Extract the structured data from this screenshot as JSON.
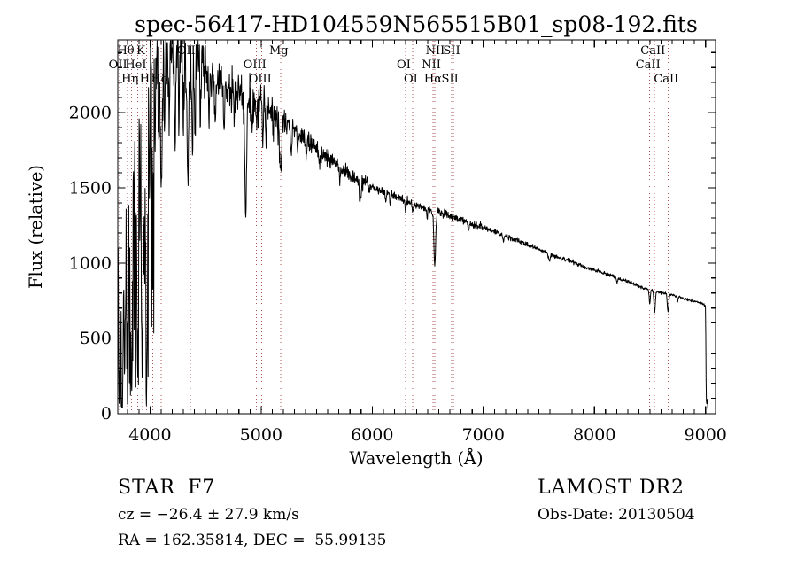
{
  "title": "spec-56417-HD104559N565515B01_sp08-192.fits",
  "footer": {
    "class_label": "STAR",
    "subclass": "F7",
    "cz_line": "cz = −26.4 ± 27.9 km/s",
    "radec_line": "RA = 162.35814, DEC =  55.99135",
    "survey": "LAMOST DR2",
    "obsdate_line": "Obs-Date: 20130504"
  },
  "chart_data": {
    "type": "line",
    "title": "spec-56417-HD104559N565515B01_sp08-192.fits",
    "xlabel": "Wavelength (Å)",
    "ylabel": "Flux (relative)",
    "xlim": [
      3710,
      9090
    ],
    "ylim": [
      0,
      2484
    ],
    "xticks_major": [
      4000,
      5000,
      6000,
      7000,
      8000,
      9000
    ],
    "xtick_minor_step": 100,
    "yticks_major": [
      0,
      500,
      1000,
      1500,
      2000
    ],
    "ytick_minor_step": 100,
    "grid": false,
    "line_color": "#000000",
    "marker_line_color": "#a85454",
    "marker_label_color": "#402020",
    "line_markers": [
      {
        "label": "Hθ",
        "wl": 3798,
        "row": 1
      },
      {
        "label": "K",
        "wl": 3933,
        "row": 1
      },
      {
        "label": "OIII",
        "wl": 4363,
        "row": 1
      },
      {
        "label": "Mg",
        "wl": 5175,
        "row": 1
      },
      {
        "label": "NII",
        "wl": 6583,
        "row": 1
      },
      {
        "label": "SII",
        "wl": 6731,
        "row": 1
      },
      {
        "label": "CaII",
        "wl": 8542,
        "row": 1
      },
      {
        "label": "OII",
        "wl": 3727,
        "row": 2
      },
      {
        "label": "HeI",
        "wl": 3889,
        "row": 2
      },
      {
        "label": "OIII",
        "wl": 4959,
        "row": 2
      },
      {
        "label": "OI",
        "wl": 6300,
        "row": 2
      },
      {
        "label": "NII",
        "wl": 6548,
        "row": 2
      },
      {
        "label": "CaII",
        "wl": 8498,
        "row": 2
      },
      {
        "label": "Hη",
        "wl": 3835,
        "row": 3
      },
      {
        "label": "H",
        "wl": 3968,
        "row": 3
      },
      {
        "label": "Hδ",
        "wl": 4101,
        "row": 3
      },
      {
        "label": "OIII",
        "wl": 5007,
        "row": 3
      },
      {
        "label": "OI",
        "wl": 6363,
        "row": 3
      },
      {
        "label": "Hα",
        "wl": 6563,
        "row": 3
      },
      {
        "label": "SII",
        "wl": 6716,
        "row": 3
      },
      {
        "label": "CaII",
        "wl": 8662,
        "row": 3
      }
    ],
    "unlabeled_markers": [
      4026
    ],
    "continuum": [
      [
        3710,
        1500
      ],
      [
        3716,
        2000
      ],
      [
        3725,
        2120
      ],
      [
        3750,
        2150
      ],
      [
        3800,
        2180
      ],
      [
        3850,
        2230
      ],
      [
        3900,
        2270
      ],
      [
        3950,
        2300
      ],
      [
        4000,
        2330
      ],
      [
        4060,
        2390
      ],
      [
        4120,
        2410
      ],
      [
        4180,
        2400
      ],
      [
        4240,
        2405
      ],
      [
        4300,
        2370
      ],
      [
        4360,
        2340
      ],
      [
        4420,
        2330
      ],
      [
        4480,
        2270
      ],
      [
        4540,
        2230
      ],
      [
        4600,
        2200
      ],
      [
        4660,
        2170
      ],
      [
        4720,
        2150
      ],
      [
        4780,
        2135
      ],
      [
        4861,
        2110
      ],
      [
        4940,
        2075
      ],
      [
        5000,
        2050
      ],
      [
        5080,
        2020
      ],
      [
        5175,
        1965
      ],
      [
        5250,
        1915
      ],
      [
        5320,
        1875
      ],
      [
        5400,
        1820
      ],
      [
        5500,
        1755
      ],
      [
        5600,
        1695
      ],
      [
        5700,
        1640
      ],
      [
        5800,
        1590
      ],
      [
        5900,
        1540
      ],
      [
        6000,
        1505
      ],
      [
        6100,
        1470
      ],
      [
        6200,
        1445
      ],
      [
        6300,
        1415
      ],
      [
        6400,
        1385
      ],
      [
        6500,
        1360
      ],
      [
        6563,
        1345
      ],
      [
        6650,
        1325
      ],
      [
        6750,
        1300
      ],
      [
        6850,
        1275
      ],
      [
        6950,
        1245
      ],
      [
        7050,
        1220
      ],
      [
        7150,
        1195
      ],
      [
        7250,
        1165
      ],
      [
        7350,
        1135
      ],
      [
        7450,
        1105
      ],
      [
        7550,
        1075
      ],
      [
        7650,
        1045
      ],
      [
        7750,
        1020
      ],
      [
        7850,
        990
      ],
      [
        7950,
        965
      ],
      [
        8050,
        940
      ],
      [
        8150,
        915
      ],
      [
        8250,
        890
      ],
      [
        8350,
        860
      ],
      [
        8450,
        830
      ],
      [
        8550,
        810
      ],
      [
        8650,
        795
      ],
      [
        8750,
        775
      ],
      [
        8850,
        755
      ],
      [
        8950,
        735
      ],
      [
        9000,
        715
      ],
      [
        9003,
        450
      ],
      [
        9006,
        90
      ],
      [
        9012,
        55
      ],
      [
        9017,
        95
      ],
      [
        9021,
        20
      ],
      [
        9025,
        15
      ]
    ],
    "absorption_lines": [
      [
        3719,
        0.8,
        5
      ],
      [
        3727,
        0.45,
        4
      ],
      [
        3734,
        0.85,
        4
      ],
      [
        3745,
        0.6,
        4
      ],
      [
        3750,
        0.95,
        5
      ],
      [
        3759,
        0.5,
        4
      ],
      [
        3771,
        0.9,
        5
      ],
      [
        3782,
        0.5,
        4
      ],
      [
        3798,
        0.93,
        6
      ],
      [
        3815,
        0.45,
        4
      ],
      [
        3823,
        0.4,
        4
      ],
      [
        3835,
        0.94,
        7
      ],
      [
        3856,
        0.5,
        4
      ],
      [
        3871,
        0.55,
        4
      ],
      [
        3889,
        0.9,
        7
      ],
      [
        3910,
        0.45,
        4
      ],
      [
        3923,
        0.4,
        4
      ],
      [
        3933,
        0.8,
        7
      ],
      [
        3952,
        0.4,
        4
      ],
      [
        3970,
        0.9,
        8
      ],
      [
        3995,
        0.35,
        4
      ],
      [
        4026,
        0.4,
        5
      ],
      [
        4045,
        0.25,
        4
      ],
      [
        4077,
        0.25,
        4
      ],
      [
        4101,
        0.36,
        8
      ],
      [
        4132,
        0.2,
        4
      ],
      [
        4172,
        0.18,
        4
      ],
      [
        4226,
        0.25,
        5
      ],
      [
        4260,
        0.18,
        4
      ],
      [
        4300,
        0.2,
        5
      ],
      [
        4340,
        0.34,
        8
      ],
      [
        4383,
        0.25,
        5
      ],
      [
        4405,
        0.2,
        4
      ],
      [
        4455,
        0.15,
        4
      ],
      [
        4531,
        0.14,
        4
      ],
      [
        4585,
        0.12,
        4
      ],
      [
        4668,
        0.13,
        4
      ],
      [
        4755,
        0.1,
        4
      ],
      [
        4861,
        0.38,
        8
      ],
      [
        4920,
        0.12,
        4
      ],
      [
        4957,
        0.1,
        4
      ],
      [
        5015,
        0.1,
        4
      ],
      [
        5045,
        0.12,
        4
      ],
      [
        5110,
        0.08,
        4
      ],
      [
        5175,
        0.16,
        11
      ],
      [
        5270,
        0.1,
        5
      ],
      [
        5328,
        0.07,
        4
      ],
      [
        5405,
        0.06,
        4
      ],
      [
        5530,
        0.05,
        4
      ],
      [
        5710,
        0.05,
        4
      ],
      [
        5893,
        0.09,
        8
      ],
      [
        6122,
        0.04,
        4
      ],
      [
        6162,
        0.04,
        4
      ],
      [
        6300,
        0.05,
        4
      ],
      [
        6363,
        0.04,
        4
      ],
      [
        6495,
        0.05,
        4
      ],
      [
        6563,
        0.27,
        8
      ],
      [
        6867,
        0.05,
        6
      ],
      [
        7180,
        0.03,
        5
      ],
      [
        7594,
        0.05,
        8
      ],
      [
        8205,
        0.04,
        5
      ],
      [
        8498,
        0.12,
        5
      ],
      [
        8542,
        0.17,
        6
      ],
      [
        8662,
        0.15,
        6
      ],
      [
        8750,
        0.04,
        4
      ]
    ],
    "noise_sigma": [
      [
        3710,
        0.11
      ],
      [
        4040,
        0.05
      ],
      [
        4500,
        0.032
      ],
      [
        5200,
        0.017
      ],
      [
        6000,
        0.01
      ],
      [
        7000,
        0.007
      ],
      [
        9000,
        0.02
      ]
    ],
    "blue_forest": {
      "max_wl": 4040,
      "prob": 0.2,
      "min_frac": 0.15,
      "rand_frac": 0.6
    },
    "sample_step": 3,
    "seed": 11
  }
}
